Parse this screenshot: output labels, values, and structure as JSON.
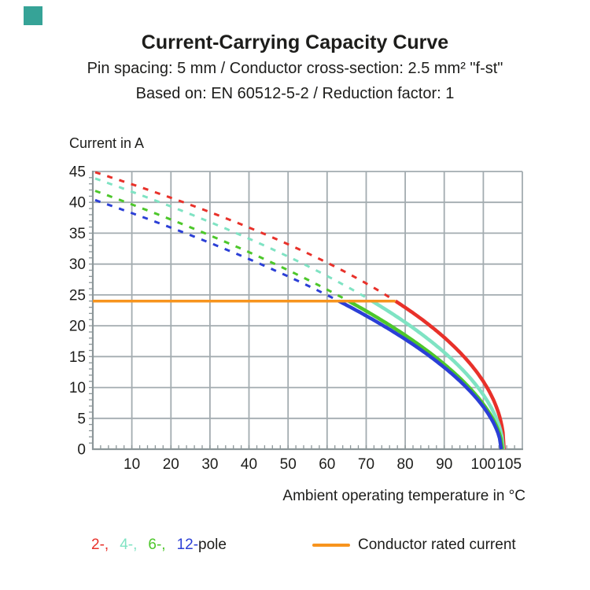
{
  "corner_square": {
    "color": "#36A397"
  },
  "header": {
    "title": "Current-Carrying Capacity Curve",
    "subtitle1": "Pin spacing: 5 mm / Conductor cross-section: 2.5 mm² \"f-st\"",
    "subtitle2": "Based on: EN 60512-5-2 / Reduction factor: 1"
  },
  "legend": {
    "pole_entries": [
      {
        "label": "2-,",
        "color": "#E8312A"
      },
      {
        "label": "4-,",
        "color": "#7FE3C3"
      },
      {
        "label": "6-,",
        "color": "#4DC72B"
      },
      {
        "label": "12-",
        "color": "#2B3FD6"
      }
    ],
    "pole_suffix": "pole",
    "rated_label": "Conductor rated current"
  },
  "chart_data": {
    "type": "line",
    "title": "Current-Carrying Capacity Curve",
    "xlabel": "Ambient operating temperature in °C",
    "ylabel": "Current in A",
    "xlim": [
      0,
      110
    ],
    "ylim": [
      0,
      45
    ],
    "x_ticks": [
      10,
      20,
      30,
      40,
      50,
      60,
      70,
      80,
      90,
      100,
      105
    ],
    "y_ticks": [
      0,
      5,
      10,
      15,
      20,
      25,
      30,
      35,
      40,
      45
    ],
    "x_minor_step": 2,
    "y_minor_step": 1,
    "grid": true,
    "grid_color": "#A3ACB0",
    "axis_color": "#8C9699",
    "legend_position": "bottom",
    "rated_current": {
      "label": "Conductor rated current",
      "value_a": 24,
      "t_start_c": 0,
      "t_end_c": 77.5,
      "color": "#F7941E"
    },
    "x_sample_temps_c": [
      0,
      10,
      20,
      30,
      40,
      50,
      60,
      70,
      80,
      90,
      100,
      105
    ],
    "series": [
      {
        "name": "2-pole",
        "color": "#E8312A",
        "current_at_0c_a": 45,
        "crosses_rated_at_c": 77.5,
        "zero_at_c": 105.3,
        "line_style": "dashed above rated current, solid below",
        "values_a": [
          45,
          43,
          40.7,
          38.4,
          35.9,
          33.2,
          30.2,
          26.9,
          23,
          18.1,
          11,
          2.8
        ]
      },
      {
        "name": "4-pole",
        "color": "#7FE3C3",
        "current_at_0c_a": 44,
        "crosses_rated_at_c": 71.5,
        "zero_at_c": 105.1,
        "line_style": "dashed above rated current, solid below",
        "values_a": [
          44,
          41.7,
          39.3,
          36.8,
          34.1,
          31.2,
          28.1,
          24.6,
          20.6,
          15.7,
          8.8,
          1.1
        ]
      },
      {
        "name": "6-pole",
        "color": "#4DC72B",
        "current_at_0c_a": 42,
        "crosses_rated_at_c": 65.5,
        "zero_at_c": 104.9,
        "line_style": "dashed above rated current, solid below",
        "values_a": [
          42,
          39.7,
          37.2,
          34.6,
          31.9,
          29,
          25.9,
          22.4,
          18.5,
          13.8,
          7.3,
          0
        ]
      },
      {
        "name": "12-pole",
        "color": "#2B3FD6",
        "current_at_0c_a": 40.5,
        "crosses_rated_at_c": 63,
        "zero_at_c": 104.6,
        "line_style": "dashed above rated current, solid below",
        "values_a": [
          40.5,
          38.3,
          35.9,
          33.4,
          30.8,
          28,
          25,
          21.6,
          17.8,
          13.2,
          6.9,
          0
        ]
      }
    ]
  }
}
